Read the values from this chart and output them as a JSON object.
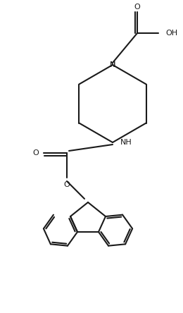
{
  "bg_color": "#ffffff",
  "line_color": "#1a1a1a",
  "line_width": 1.5,
  "figsize": [
    2.6,
    4.44
  ],
  "dpi": 100,
  "xlim": [
    0,
    26
  ],
  "ylim": [
    0,
    44
  ]
}
